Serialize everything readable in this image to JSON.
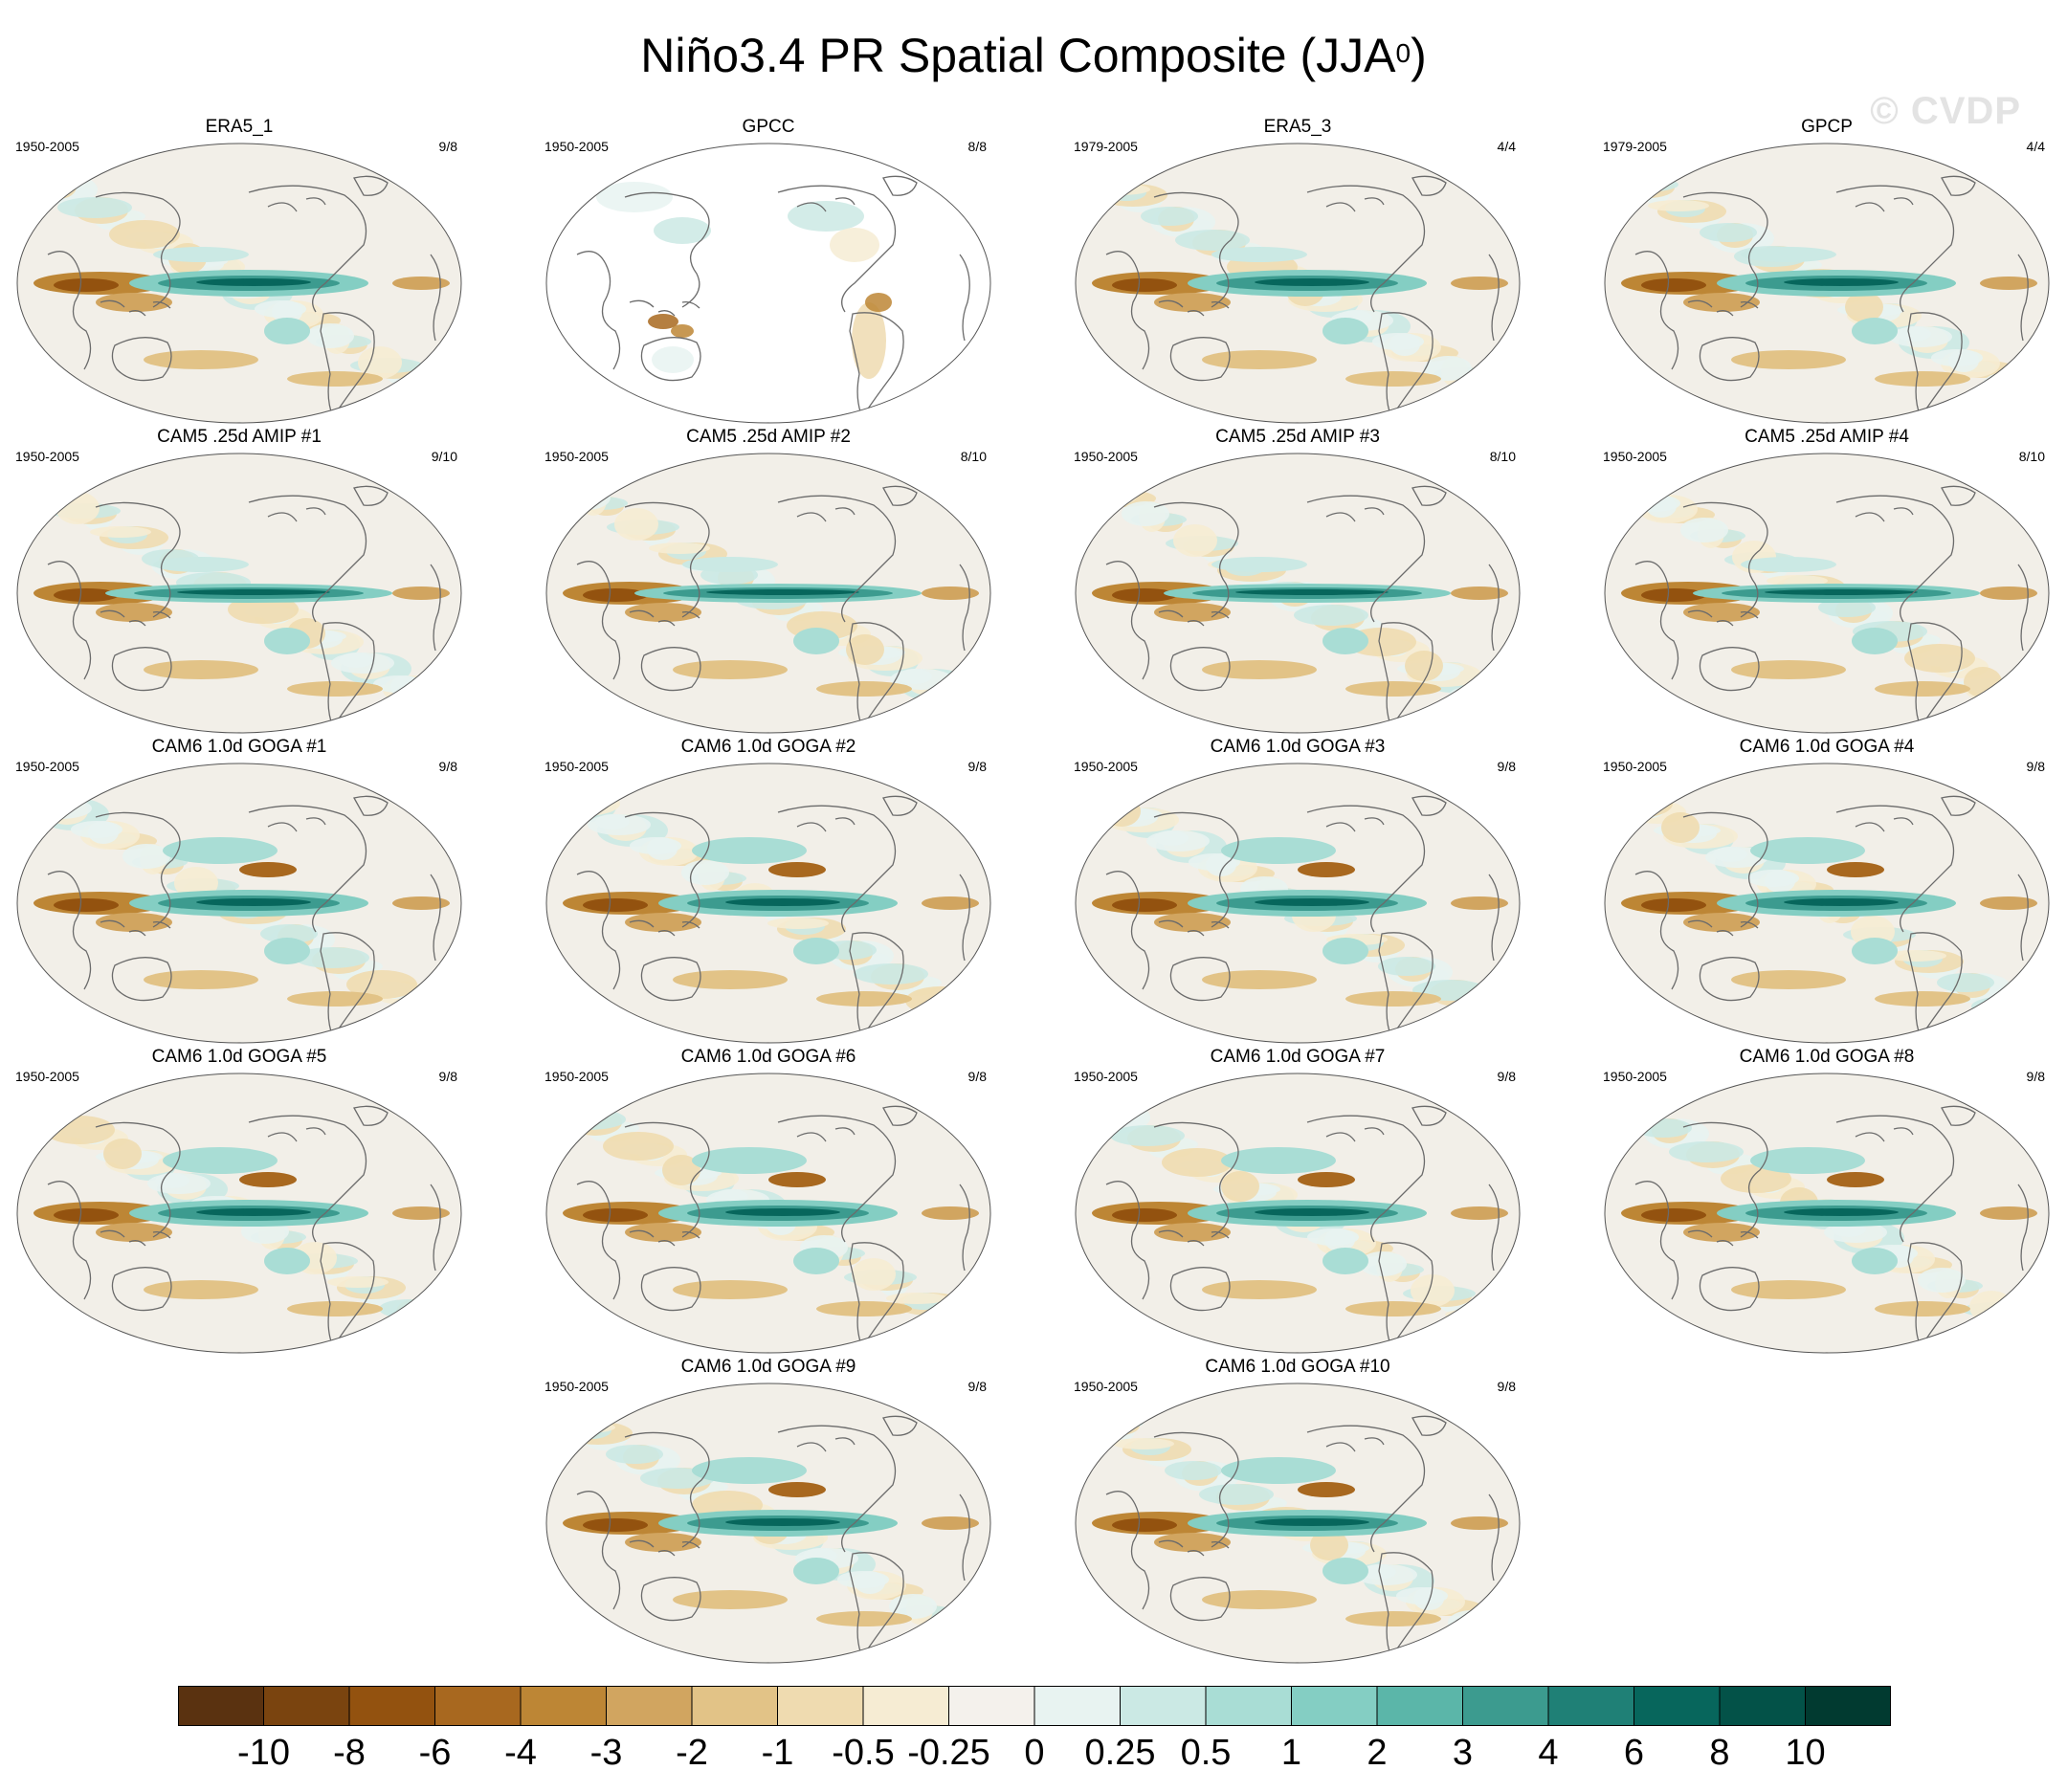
{
  "title_main": "Niño3.4 PR Spatial Composite (JJA",
  "title_sup": "0",
  "title_close": ")",
  "watermark": "© CVDP",
  "chart_data": {
    "type": "heatmap",
    "description_kind": "map panel grid with shared colorbar",
    "panels": [
      {
        "title": "ERA5_1",
        "years": "1950-2005",
        "ratio": "9/8",
        "row": 0,
        "col": 0,
        "style": "obs"
      },
      {
        "title": "GPCC",
        "years": "1950-2005",
        "ratio": "8/8",
        "row": 0,
        "col": 1,
        "style": "land"
      },
      {
        "title": "ERA5_3",
        "years": "1979-2005",
        "ratio": "4/4",
        "row": 0,
        "col": 2,
        "style": "obs"
      },
      {
        "title": "GPCP",
        "years": "1979-2005",
        "ratio": "4/4",
        "row": 0,
        "col": 3,
        "style": "obs"
      },
      {
        "title": "CAM5 .25d AMIP #1",
        "years": "1950-2005",
        "ratio": "9/10",
        "row": 1,
        "col": 0,
        "style": "amip"
      },
      {
        "title": "CAM5 .25d AMIP #2",
        "years": "1950-2005",
        "ratio": "8/10",
        "row": 1,
        "col": 1,
        "style": "amip"
      },
      {
        "title": "CAM5 .25d AMIP #3",
        "years": "1950-2005",
        "ratio": "8/10",
        "row": 1,
        "col": 2,
        "style": "amip"
      },
      {
        "title": "CAM5 .25d AMIP #4",
        "years": "1950-2005",
        "ratio": "8/10",
        "row": 1,
        "col": 3,
        "style": "amip"
      },
      {
        "title": "CAM6 1.0d GOGA #1",
        "years": "1950-2005",
        "ratio": "9/8",
        "row": 2,
        "col": 0,
        "style": "goga"
      },
      {
        "title": "CAM6 1.0d GOGA #2",
        "years": "1950-2005",
        "ratio": "9/8",
        "row": 2,
        "col": 1,
        "style": "goga"
      },
      {
        "title": "CAM6 1.0d GOGA #3",
        "years": "1950-2005",
        "ratio": "9/8",
        "row": 2,
        "col": 2,
        "style": "goga"
      },
      {
        "title": "CAM6 1.0d GOGA #4",
        "years": "1950-2005",
        "ratio": "9/8",
        "row": 2,
        "col": 3,
        "style": "goga"
      },
      {
        "title": "CAM6 1.0d GOGA #5",
        "years": "1950-2005",
        "ratio": "9/8",
        "row": 3,
        "col": 0,
        "style": "goga"
      },
      {
        "title": "CAM6 1.0d GOGA #6",
        "years": "1950-2005",
        "ratio": "9/8",
        "row": 3,
        "col": 1,
        "style": "goga"
      },
      {
        "title": "CAM6 1.0d GOGA #7",
        "years": "1950-2005",
        "ratio": "9/8",
        "row": 3,
        "col": 2,
        "style": "goga"
      },
      {
        "title": "CAM6 1.0d GOGA #8",
        "years": "1950-2005",
        "ratio": "9/8",
        "row": 3,
        "col": 3,
        "style": "goga"
      },
      {
        "title": "CAM6 1.0d GOGA #9",
        "years": "1950-2005",
        "ratio": "9/8",
        "row": 4,
        "col": 1,
        "style": "goga"
      },
      {
        "title": "CAM6 1.0d GOGA #10",
        "years": "1950-2005",
        "ratio": "9/8",
        "row": 4,
        "col": 2,
        "style": "goga"
      }
    ],
    "colorbar": {
      "colors": [
        "#5a3210",
        "#7a440f",
        "#93520f",
        "#a8681f",
        "#bd8635",
        "#d1a560",
        "#e2c387",
        "#efdbb0",
        "#f6ecd3",
        "#f4f1ec",
        "#e8f3f1",
        "#cbe9e4",
        "#a9ddd5",
        "#84cec3",
        "#5bb6a9",
        "#3c9b8f",
        "#1f8076",
        "#07665c",
        "#035248",
        "#013a30"
      ],
      "labels": [
        "-10",
        "-8",
        "-6",
        "-4",
        "-3",
        "-2",
        "-1",
        "-0.5",
        "-0.25",
        "0",
        "0.25",
        "0.5",
        "1",
        "2",
        "3",
        "4",
        "6",
        "8",
        "10"
      ]
    }
  }
}
